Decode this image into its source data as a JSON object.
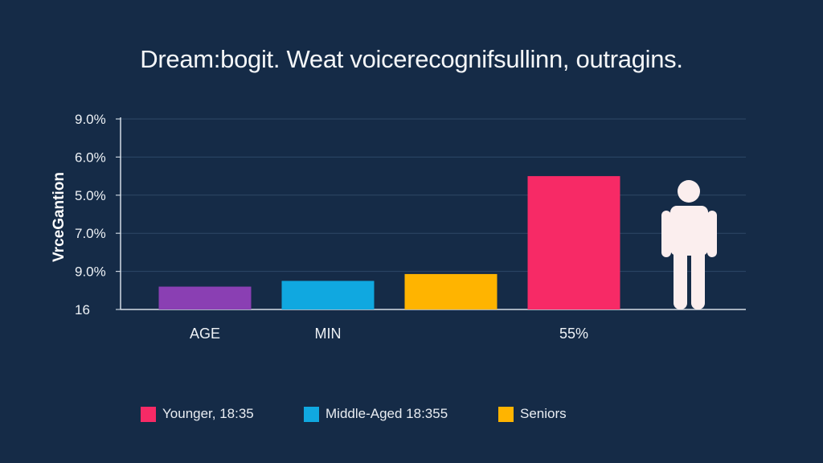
{
  "chart_data": {
    "type": "bar",
    "title": "Dream:bogit. Weat voicerecognifsullinn, outragins.",
    "ylabel": "VrceGantion",
    "ytick_labels": [
      "9.0%",
      "6.0%",
      "5.0%",
      "7.0%",
      "9.0%",
      "16"
    ],
    "categories": [
      "AGE",
      "MIN",
      "",
      "55%"
    ],
    "values": [
      0.6,
      0.75,
      0.93,
      3.5
    ],
    "ylim": [
      0,
      5
    ],
    "bar_colors": [
      "#8a3fb3",
      "#10a8e0",
      "#ffb400",
      "#f72a66"
    ],
    "grid": true,
    "legend": {
      "placement": "bottom",
      "entries": [
        {
          "label": "Younger, 18:35",
          "color": "#f72a66"
        },
        {
          "label": "Middle-Aged 18:355",
          "color": "#10a8e0"
        },
        {
          "label": "Seniors",
          "color": "#ffb400"
        }
      ]
    },
    "figure_icon": "person-icon"
  }
}
